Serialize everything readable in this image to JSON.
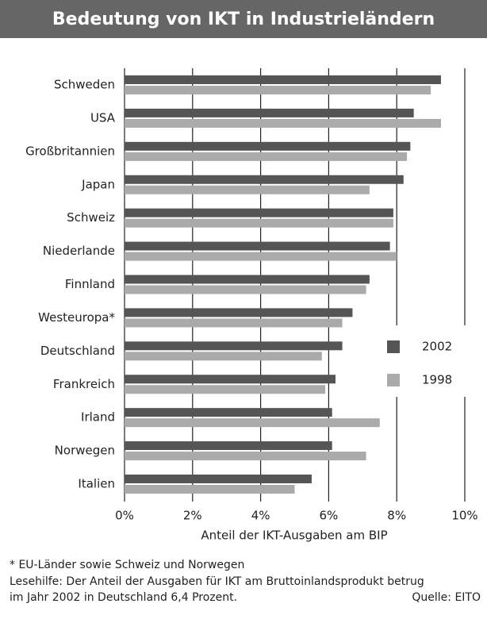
{
  "chart_data": {
    "type": "barh",
    "title": "Bedeutung von IKT in Industrieländern",
    "x_label": "Anteil der IKT-Ausgaben am BIP",
    "categories": [
      "Schweden",
      "USA",
      "Großbritannien",
      "Japan",
      "Schweiz",
      "Niederlande",
      "Finnland",
      "Westeuropa*",
      "Deutschland",
      "Frankreich",
      "Irland",
      "Norwegen",
      "Italien"
    ],
    "series": [
      {
        "name": "2002",
        "color": "#555555",
        "values": [
          9.3,
          8.5,
          8.4,
          8.2,
          7.9,
          7.8,
          7.2,
          6.7,
          6.4,
          6.2,
          6.1,
          6.1,
          5.5
        ]
      },
      {
        "name": "1998",
        "color": "#aaaaaa",
        "values": [
          9.0,
          9.3,
          8.3,
          7.2,
          7.9,
          8.0,
          7.1,
          6.4,
          5.8,
          5.9,
          7.5,
          7.1,
          5.0
        ]
      }
    ],
    "xlim": [
      0,
      10
    ],
    "xticks": [
      {
        "value": 0,
        "label": "0%"
      },
      {
        "value": 2,
        "label": "2%"
      },
      {
        "value": 4,
        "label": "4%"
      },
      {
        "value": 6,
        "label": "6%"
      },
      {
        "value": 8,
        "label": "8%"
      },
      {
        "value": 10,
        "label": "10%"
      }
    ],
    "grid": true,
    "legend": "right",
    "footnote": "* EU-Länder sowie Schweiz und Norwegen",
    "reading_aid": [
      "Lesehilfe: Der Anteil der Ausgaben für IKT am Bruttoinlandsprodukt betrug",
      "im Jahr 2002 in Deutschland 6,4 Prozent."
    ],
    "source": "Quelle: EITO"
  }
}
